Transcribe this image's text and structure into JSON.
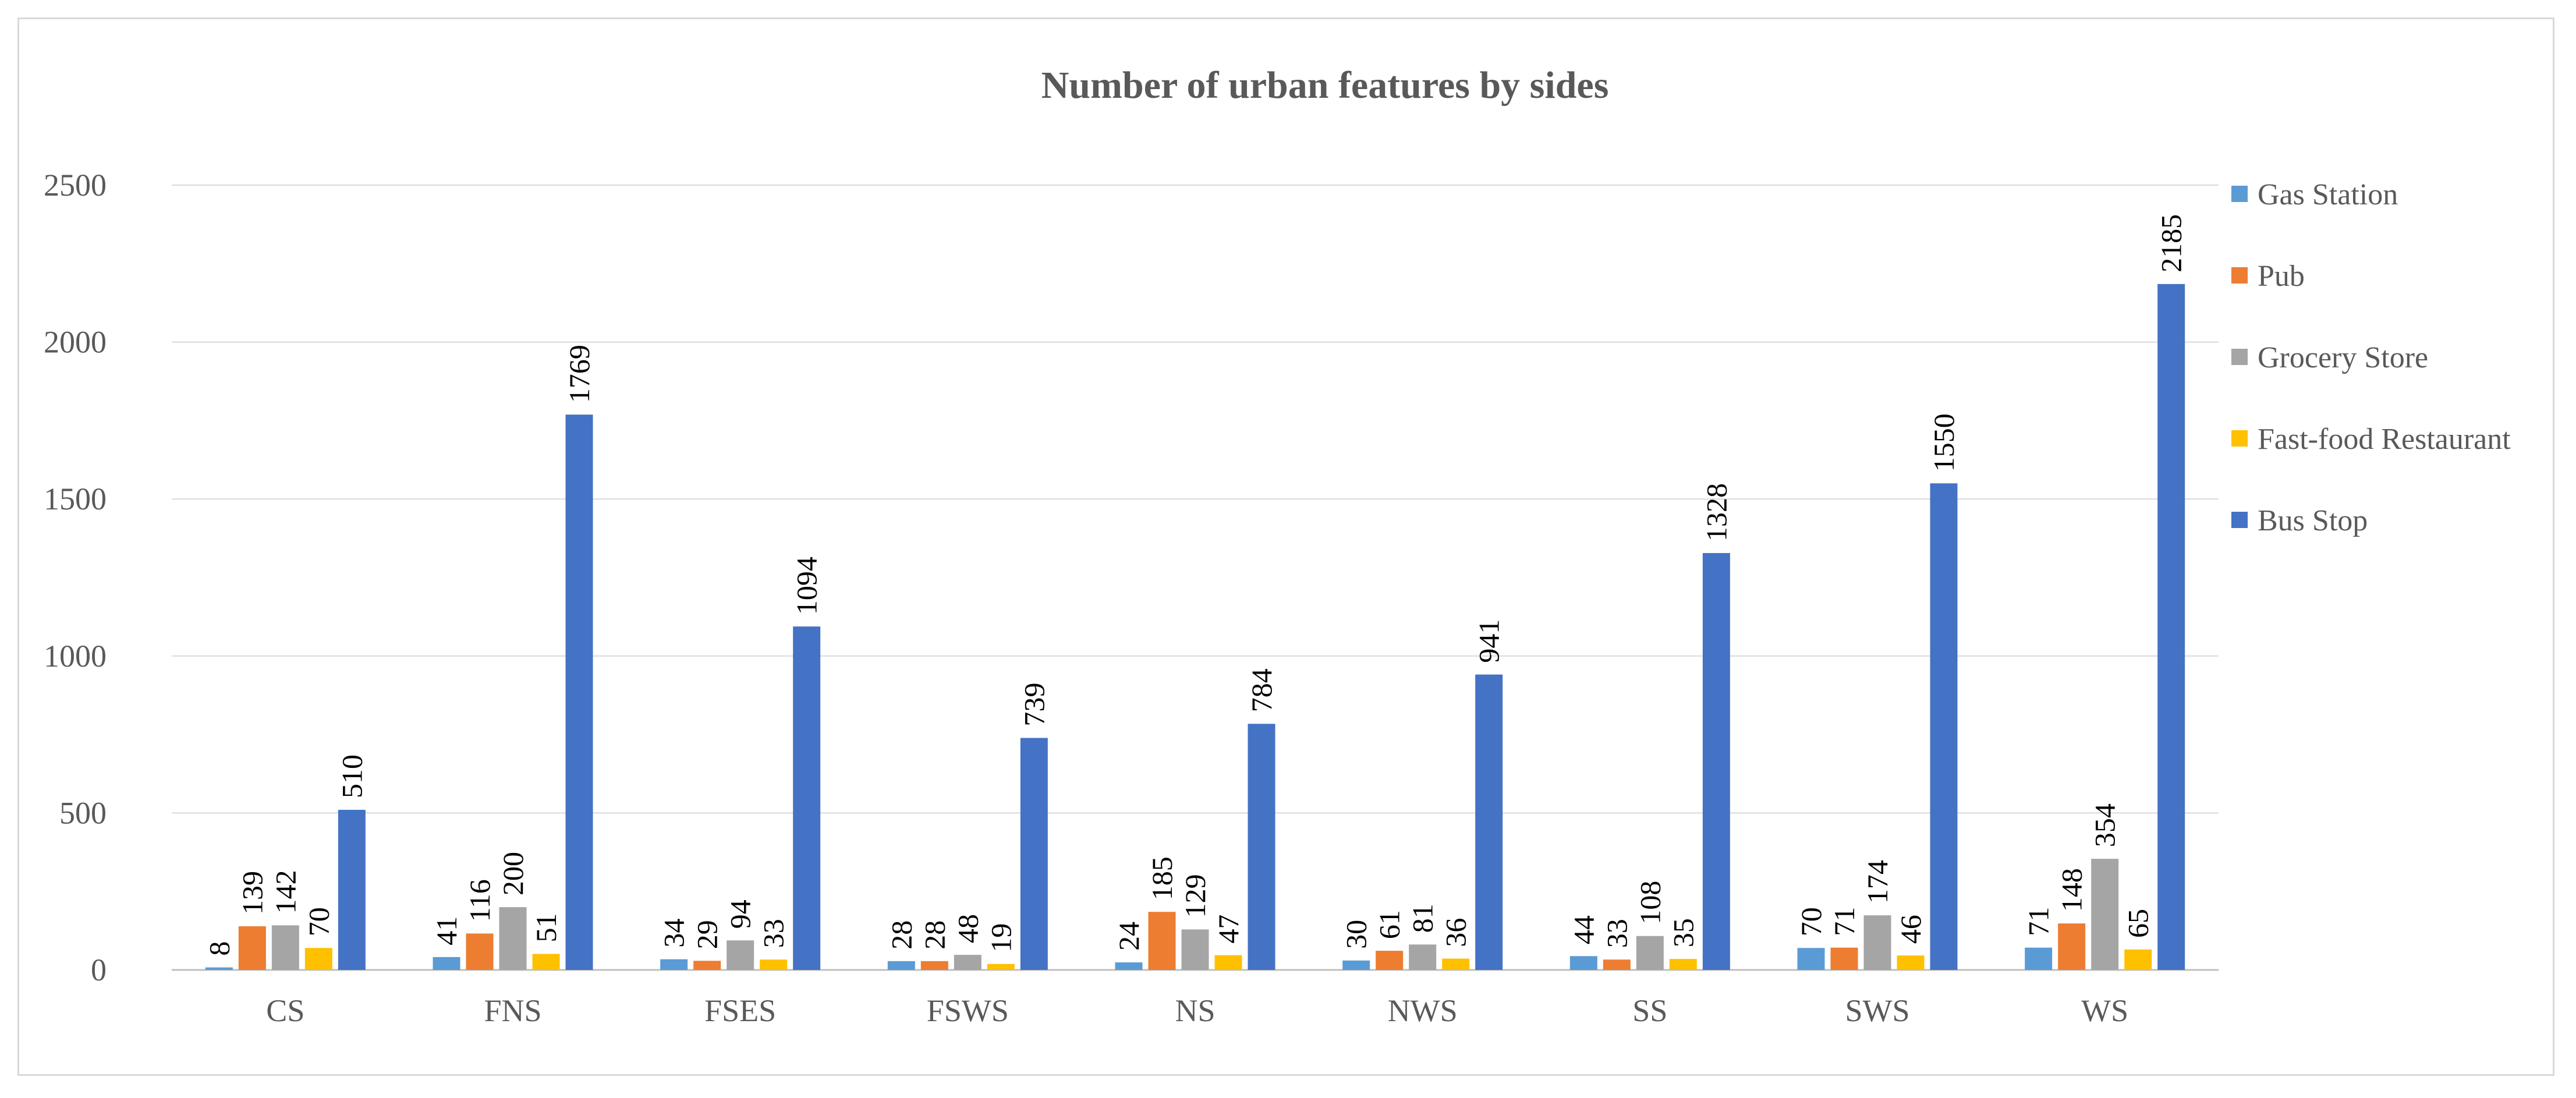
{
  "chart_data": {
    "type": "bar",
    "title": "Number of urban features by sides",
    "xlabel": "",
    "ylabel": "",
    "ylim": [
      0,
      2500
    ],
    "yticks": [
      0,
      500,
      1000,
      1500,
      2000,
      2500
    ],
    "grid": true,
    "legend_position": "right",
    "categories": [
      "CS",
      "FNS",
      "FSES",
      "FSWS",
      "NS",
      "NWS",
      "SS",
      "SWS",
      "WS"
    ],
    "series": [
      {
        "name": "Gas Station",
        "color": "#5B9BD5",
        "values": [
          8,
          41,
          34,
          28,
          24,
          30,
          44,
          70,
          71
        ]
      },
      {
        "name": "Pub",
        "color": "#ED7D31",
        "values": [
          139,
          116,
          29,
          28,
          185,
          61,
          33,
          71,
          148
        ]
      },
      {
        "name": "Grocery Store",
        "color": "#A5A5A5",
        "values": [
          142,
          200,
          94,
          48,
          129,
          81,
          108,
          174,
          354
        ]
      },
      {
        "name": "Fast-food Restaurant",
        "color": "#FFC000",
        "values": [
          70,
          51,
          33,
          19,
          47,
          36,
          35,
          46,
          65
        ]
      },
      {
        "name": "Bus Stop",
        "color": "#4472C4",
        "values": [
          510,
          1769,
          1094,
          739,
          784,
          941,
          1328,
          1550,
          2185
        ]
      }
    ]
  }
}
